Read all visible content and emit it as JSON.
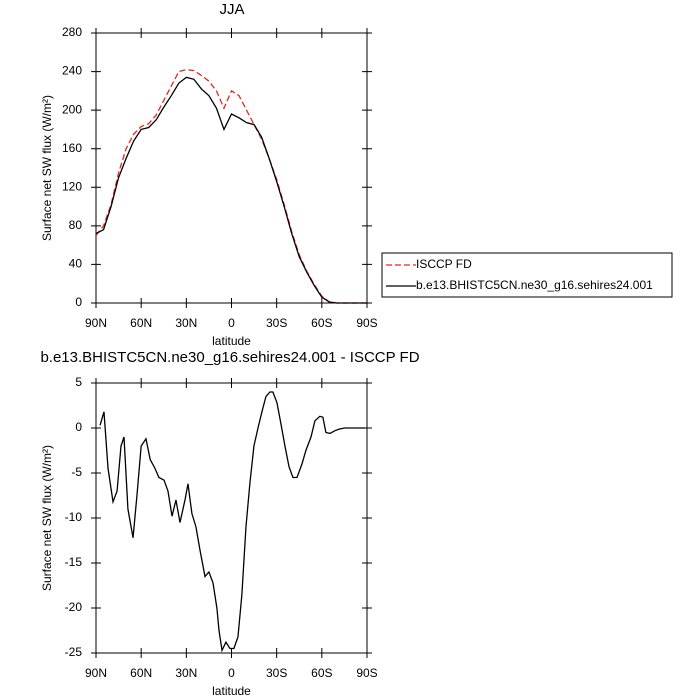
{
  "chart_data": [
    {
      "type": "line",
      "title": "JJA",
      "x_label": "latitude",
      "y_label": "Surface net SW flux (W/m²)",
      "x": [
        90,
        85,
        80,
        75,
        70,
        65,
        60,
        55,
        50,
        45,
        40,
        35,
        30,
        25,
        20,
        15,
        10,
        5,
        0,
        -5,
        -10,
        -15,
        -20,
        -25,
        -30,
        -35,
        -40,
        -45,
        -50,
        -55,
        -60,
        -65,
        -70,
        -75,
        -80,
        -85,
        -90
      ],
      "series": [
        {
          "name": "ISCCP FD",
          "color": "#e8261f",
          "dashed": true,
          "values": [
            70,
            80,
            102,
            135,
            160,
            175,
            183,
            186,
            195,
            210,
            225,
            240,
            242,
            241,
            236,
            230,
            220,
            202,
            220,
            215,
            200,
            185,
            170,
            150,
            128,
            102,
            74,
            50,
            33,
            19,
            7,
            1,
            0,
            0,
            0,
            0,
            0
          ]
        },
        {
          "name": "b.e13.BHISTC5CN.ne30_g16.sehires24.001",
          "color": "#000000",
          "dashed": false,
          "values": [
            72,
            76,
            100,
            130,
            150,
            168,
            180,
            182,
            190,
            203,
            215,
            228,
            234,
            232,
            222,
            215,
            202,
            180,
            196,
            192,
            187,
            185,
            172,
            150,
            126,
            100,
            72,
            48,
            32,
            18,
            6,
            1,
            0,
            0,
            0,
            0,
            0
          ]
        }
      ],
      "xlim": [
        90,
        -90
      ],
      "xticks": [
        {
          "value": 90,
          "label": "90N"
        },
        {
          "value": 60,
          "label": "60N"
        },
        {
          "value": 30,
          "label": "30N"
        },
        0,
        {
          "value": -30,
          "label": "30S"
        },
        {
          "value": -60,
          "label": "60S"
        },
        {
          "value": -90,
          "label": "90S"
        }
      ],
      "ylim": [
        0,
        280
      ],
      "yticks": [
        0,
        40,
        80,
        120,
        160,
        200,
        240,
        280
      ],
      "legend": "right"
    },
    {
      "type": "line",
      "title": "b.e13.BHISTC5CN.ne30_g16.sehires24.001 - ISCCP FD",
      "x_label": "latitude",
      "y_label": "Surface net SW flux (W/m²)",
      "x": [
        87.3,
        84.7,
        82,
        78.7,
        76,
        73.4,
        71.4,
        68.8,
        65.4,
        62.8,
        60,
        56.8,
        54,
        50.8,
        48.2,
        44.8,
        42.2,
        39.5,
        36.9,
        34.2,
        30.9,
        28.9,
        26.3,
        23.6,
        21,
        17.6,
        15,
        12.3,
        9.7,
        8.3,
        6.3,
        3.7,
        1,
        -1.6,
        -4.3,
        -6.9,
        -9.6,
        -12.3,
        -14.9,
        -17.6,
        -20.2,
        -22.9,
        -25.5,
        -27.5,
        -30.2,
        -32.8,
        -35.5,
        -38.2,
        -40.8,
        -43.5,
        -46.8,
        -49.4,
        -52.8,
        -55.4,
        -58.7,
        -60.7,
        -62.7,
        -65.4,
        -68.7,
        -72,
        -75.4,
        -82,
        -88.7
      ],
      "series": [
        {
          "color": "#000000",
          "dashed": false,
          "values": [
            0.3,
            1.8,
            -4.5,
            -8.2,
            -7,
            -2,
            -1,
            -9,
            -12.2,
            -7.5,
            -2,
            -1.2,
            -3.5,
            -4.5,
            -5.5,
            -5.8,
            -7,
            -9.8,
            -8,
            -10.5,
            -8,
            -6.2,
            -9.5,
            -11,
            -13.5,
            -16.5,
            -16,
            -17.2,
            -20,
            -22.5,
            -24.7,
            -23.8,
            -24.5,
            -24.5,
            -23.2,
            -18.5,
            -11,
            -6,
            -2,
            0,
            1.8,
            3.5,
            4,
            4,
            2.8,
            0.5,
            -2,
            -4.3,
            -5.5,
            -5.5,
            -4,
            -2.5,
            -1,
            0.8,
            1.3,
            1.2,
            -0.5,
            -0.6,
            -0.3,
            -0.1,
            0,
            0,
            0
          ]
        }
      ],
      "xlim": [
        90,
        -90
      ],
      "xticks": [
        {
          "value": 90,
          "label": "90N"
        },
        {
          "value": 60,
          "label": "60N"
        },
        {
          "value": 30,
          "label": "30N"
        },
        0,
        {
          "value": -30,
          "label": "30S"
        },
        {
          "value": -60,
          "label": "60S"
        },
        {
          "value": -90,
          "label": "90S"
        }
      ],
      "ylim": [
        -25,
        5
      ],
      "yticks": [
        -25,
        -20,
        -15,
        -10,
        -5,
        0,
        5
      ]
    }
  ]
}
